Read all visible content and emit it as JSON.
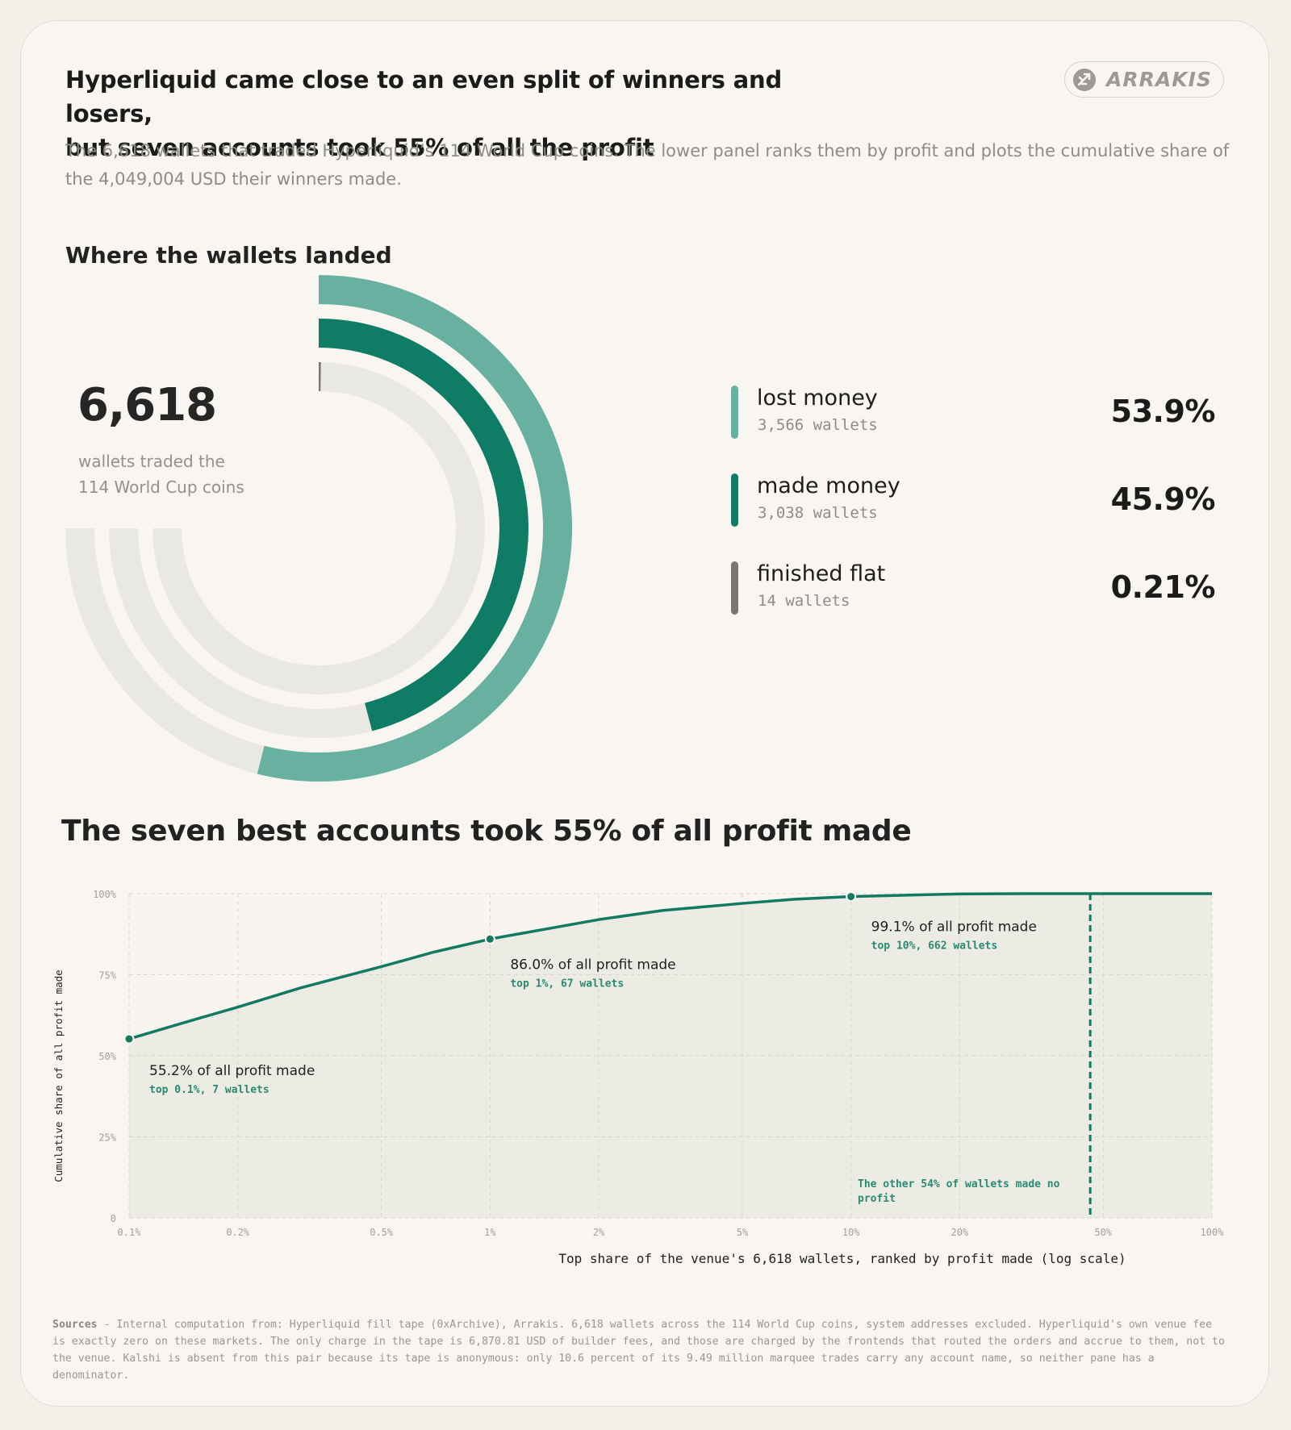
{
  "title_line1": "Hyperliquid came close to an even split of winners and losers,",
  "title_line2": "but seven accounts took 55% of all the profit",
  "subtitle": "The 6,618 wallets that traded Hyperliquid’s 114 World Cup coins. The lower panel ranks them by profit and plots the cumulative share of the 4,049,004 USD their winners made.",
  "logo": {
    "text": "ARRAKIS",
    "icon": "arrakis-logo-icon"
  },
  "panel1": {
    "heading": "Where the wallets landed",
    "total": "6,618",
    "total_caption_line1": "wallets traded the",
    "total_caption_line2": "114 World Cup coins",
    "track_color": "#eae8e2",
    "legend": [
      {
        "label": "lost money",
        "count": "3,566 wallets",
        "pct_text": "53.9%",
        "share": 53.9,
        "color": "#68b1a1"
      },
      {
        "label": "made money",
        "count": "3,038 wallets",
        "pct_text": "45.9%",
        "share": 45.9,
        "color": "#0f7c65"
      },
      {
        "label": "finished flat",
        "count": "14 wallets",
        "pct_text": "0.21%",
        "share": 0.21,
        "color": "#7b7671"
      }
    ]
  },
  "panel2": {
    "heading": "The seven best accounts took 55% of all profit made"
  },
  "chart_data": {
    "type": "line",
    "x_scale": "log",
    "xlabel": "Top share of the venue's 6,618 wallets, ranked by profit made (log scale)",
    "ylabel": "Cumulative share of all profit made",
    "xlim": [
      0.1,
      100
    ],
    "ylim": [
      0,
      100
    ],
    "x_ticks": [
      {
        "value": 0.1,
        "label": "0.1%"
      },
      {
        "value": 0.2,
        "label": "0.2%"
      },
      {
        "value": 0.5,
        "label": "0.5%"
      },
      {
        "value": 1,
        "label": "1%"
      },
      {
        "value": 2,
        "label": "2%"
      },
      {
        "value": 5,
        "label": "5%"
      },
      {
        "value": 10,
        "label": "10%"
      },
      {
        "value": 20,
        "label": "20%"
      },
      {
        "value": 50,
        "label": "50%"
      },
      {
        "value": 100,
        "label": "100%"
      }
    ],
    "y_ticks": [
      {
        "value": 0,
        "label": "0"
      },
      {
        "value": 25,
        "label": "25%"
      },
      {
        "value": 50,
        "label": "50%"
      },
      {
        "value": 75,
        "label": "75%"
      },
      {
        "value": 100,
        "label": "100%"
      }
    ],
    "grid": true,
    "line_color": "#127a63",
    "series": [
      {
        "x": [
          0.1,
          0.15,
          0.2,
          0.3,
          0.5,
          0.7,
          1,
          1.5,
          2,
          3,
          5,
          7,
          10,
          15,
          20,
          30,
          46,
          100
        ],
        "y": [
          55.2,
          61,
          65,
          71,
          77.5,
          82,
          86.0,
          89.5,
          92,
          94.8,
          97,
          98.3,
          99.1,
          99.6,
          99.9,
          100,
          100,
          100
        ]
      }
    ],
    "markers": [
      {
        "x": 0.1,
        "y": 55.2,
        "label": "55.2% of all profit made",
        "sub": "top 0.1%, 7 wallets"
      },
      {
        "x": 1,
        "y": 86.0,
        "label": "86.0% of all profit made",
        "sub": "top 1%, 67 wallets"
      },
      {
        "x": 10,
        "y": 99.1,
        "label": "99.1% of all profit made",
        "sub": "top 10%, 662 wallets"
      }
    ],
    "reference_line": {
      "x": 46,
      "label_line1": "The other 54% of wallets made no",
      "label_line2": "profit"
    }
  },
  "sources_label": "Sources",
  "sources_text": " - Internal computation from: Hyperliquid fill tape (0xArchive), Arrakis. 6,618 wallets across the 114 World Cup coins, system addresses excluded. Hyperliquid's own venue fee is exactly zero on these markets. The only charge in the tape is 6,870.81 USD of builder fees, and those are charged by the frontends that routed the orders and accrue to them, not to the venue. Kalshi is absent from this pair because its tape is anonymous: only 10.6 percent of its 9.49 million marquee trades carry any account name, so neither pane has a denominator."
}
